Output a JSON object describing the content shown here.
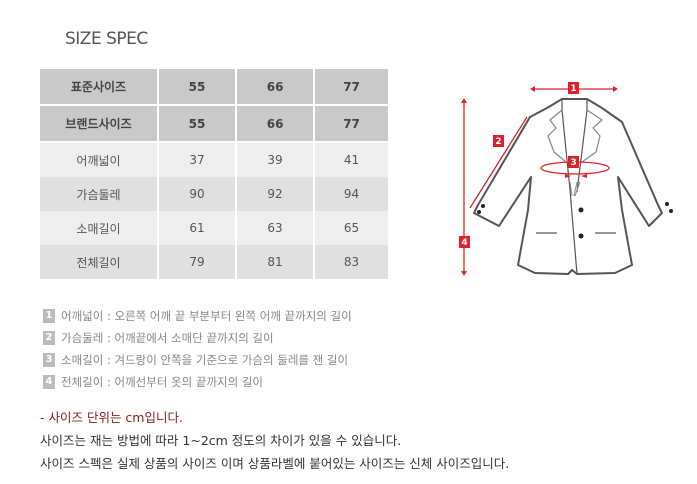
{
  "title": "SIZE SPEC",
  "table": {
    "header_rows": [
      [
        "표준사이즈",
        "55",
        "66",
        "77"
      ],
      [
        "브랜드사이즈",
        "55",
        "66",
        "77"
      ]
    ],
    "rows": [
      [
        "어깨넓이",
        "37",
        "39",
        "41"
      ],
      [
        "가슴둘레",
        "90",
        "92",
        "94"
      ],
      [
        "소매길이",
        "61",
        "63",
        "65"
      ],
      [
        "전체길이",
        "79",
        "81",
        "83"
      ]
    ]
  },
  "legend": [
    {
      "num": "1",
      "text": "어깨넓이 : 오른쪽 어깨 끝 부분부터 왼쪽 어깨 끝까지의 길이"
    },
    {
      "num": "2",
      "text": "가슴둘레 : 어깨끝에서 소매단 끝까지의 길이"
    },
    {
      "num": "3",
      "text": "소매길이 : 겨드랑이 안쪽을 기준으로 가슴의 둘레를 잰 길이"
    },
    {
      "num": "4",
      "text": "전체길이 : 어깨선부터 옷의 끝까지의 길이"
    }
  ],
  "notes": {
    "unit": "- 사이즈 단위는 cm입니다.",
    "line1": "사이즈는 재는 방법에 따라 1~2cm 정도의 차이가 있을 수 있습니다.",
    "line2": "사이즈 스펙은 실제 상품의 사이즈 이며 상품라벨에 붙어있는 사이즈는 신체 사이즈입니다."
  },
  "diagram": {
    "markers": [
      "1",
      "2",
      "3",
      "4"
    ],
    "accent": "#e0202a"
  }
}
